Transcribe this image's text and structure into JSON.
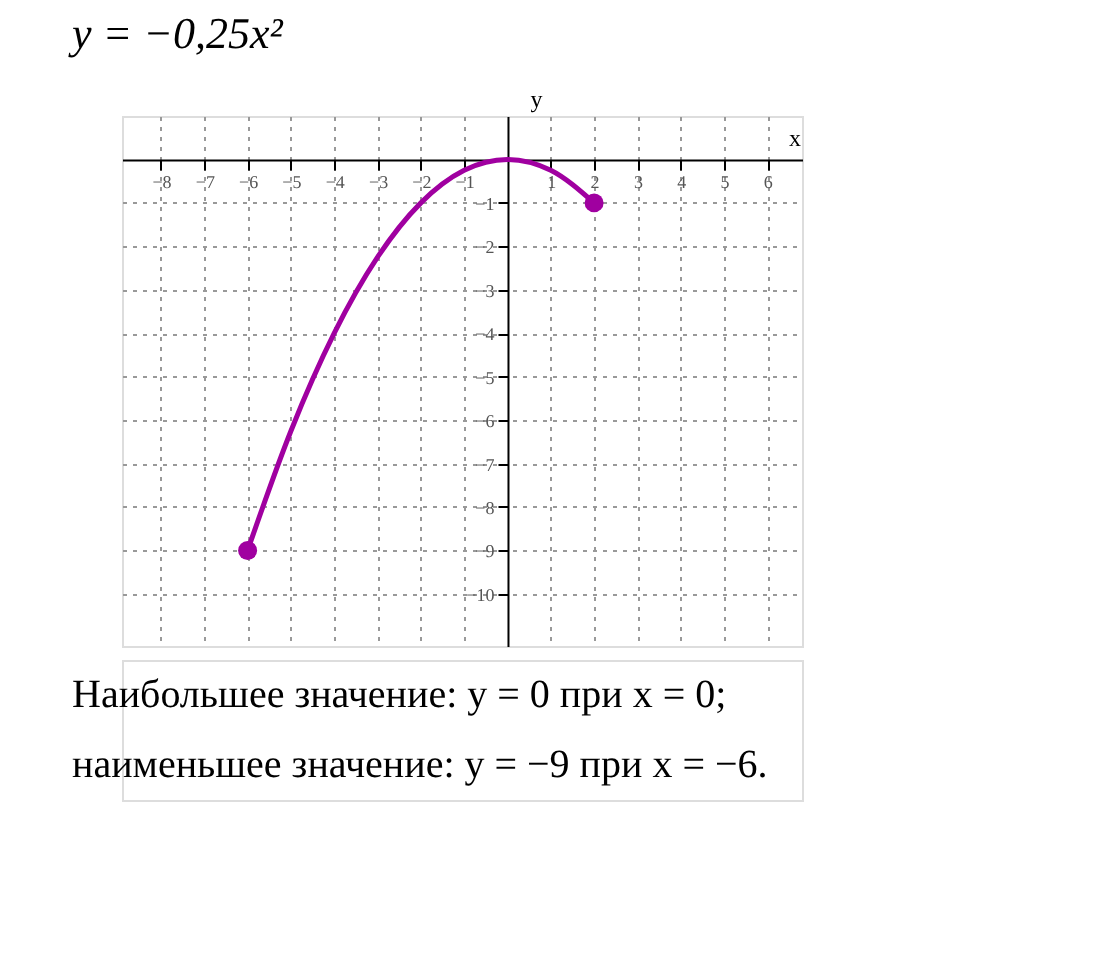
{
  "chart_data": {
    "type": "line",
    "title": "y = −0,25x²",
    "xlabel": "x",
    "ylabel": "y",
    "xlim": [
      -8.9,
      6.8
    ],
    "ylim": [
      -11.2,
      1.0
    ],
    "xticks": [
      -8,
      -7,
      -6,
      -5,
      -4,
      -3,
      -2,
      -1,
      1,
      2,
      3,
      4,
      5,
      6
    ],
    "yticks": [
      -10,
      -9,
      -8,
      -7,
      -6,
      -5,
      -4,
      -3,
      -2,
      -1
    ],
    "grid": true,
    "line_style": "solid",
    "series": [
      {
        "type": "line",
        "color": "#a000a0",
        "x": [
          -6,
          -5,
          -4,
          -3,
          -2,
          -1,
          0,
          1,
          2
        ],
        "values": [
          -9,
          -6.25,
          -4,
          -2.25,
          -1,
          -0.25,
          0,
          -0.25,
          -1
        ]
      },
      {
        "type": "scatter",
        "marker": "circle",
        "color": "#a000a0",
        "x": [
          -6,
          2
        ],
        "values": [
          -9,
          -1
        ]
      }
    ],
    "annotations": [
      "Наибольшее значение:  y = 0  при  x = 0;",
      "наименьшее значение: y = −9  при  x = −6."
    ]
  }
}
